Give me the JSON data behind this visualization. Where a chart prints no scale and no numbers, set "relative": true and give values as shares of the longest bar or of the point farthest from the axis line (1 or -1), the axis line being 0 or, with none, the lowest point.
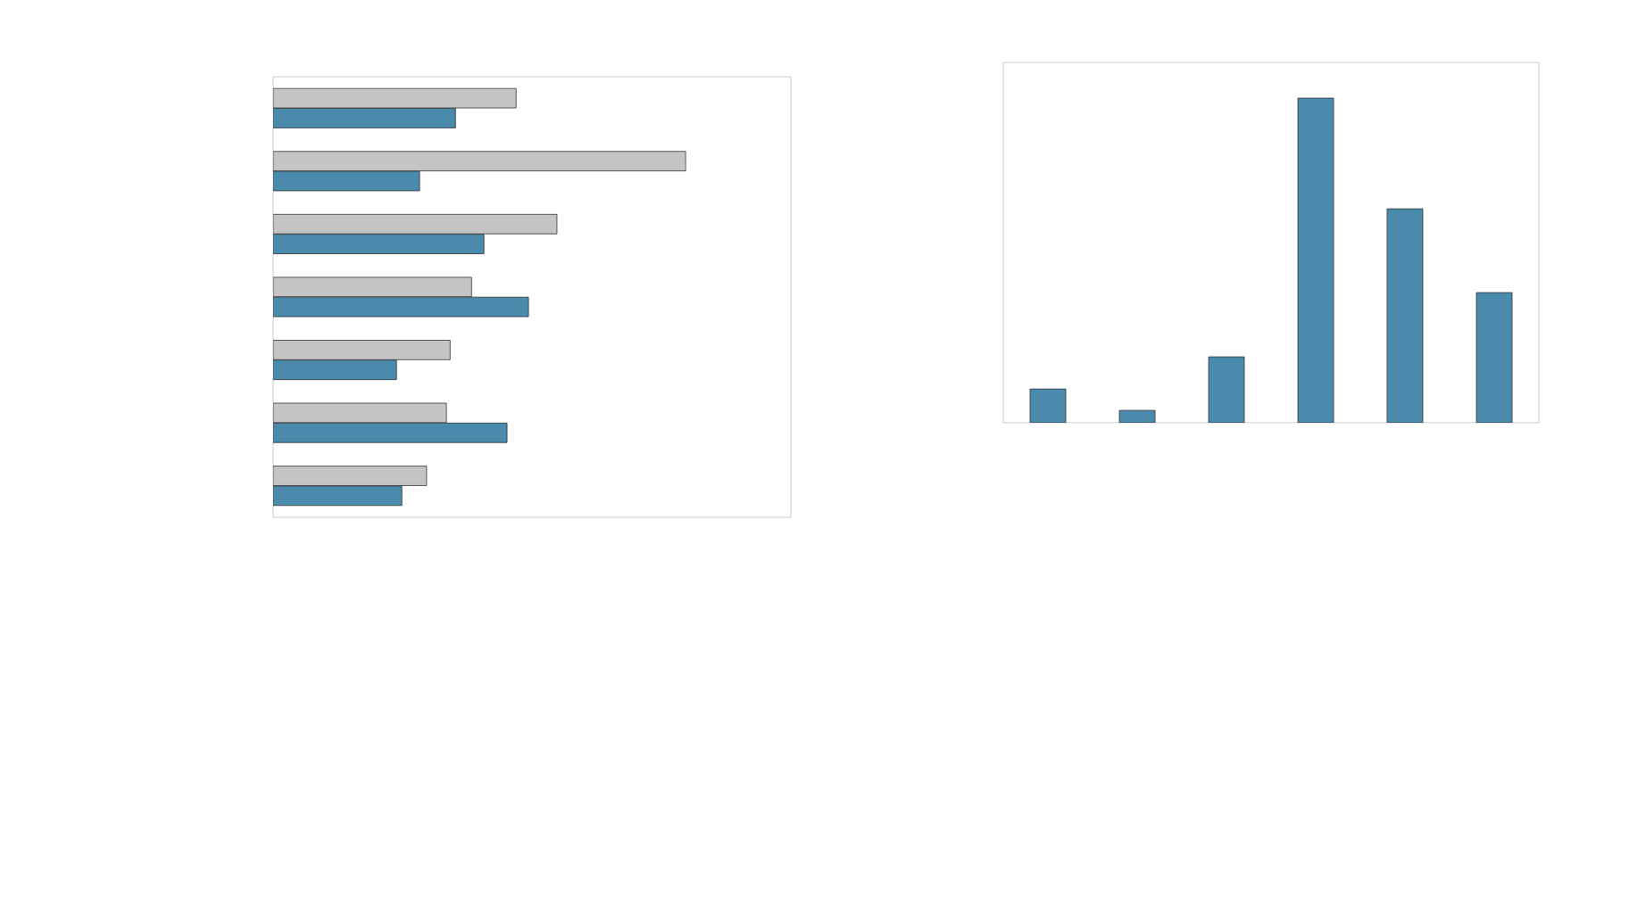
{
  "chart_data": [
    {
      "type": "bar",
      "orientation": "horizontal",
      "relative": true,
      "categories": [
        null,
        null,
        null,
        null,
        null,
        null,
        null
      ],
      "series": [
        {
          "color": "#c4c4c4",
          "values": [
            0.589,
            1,
            0.688,
            0.481,
            0.429,
            0.42,
            0.372
          ]
        },
        {
          "color": "#4a8aad",
          "values": [
            0.442,
            0.355,
            0.511,
            0.619,
            0.299,
            0.567,
            0.312
          ]
        }
      ]
    },
    {
      "type": "bar",
      "relative": true,
      "categories": [
        null,
        null,
        null,
        null,
        null,
        null
      ],
      "series": [
        {
          "color": "#4a8aad",
          "values": [
            0.104,
            0.038,
            0.203,
            1,
            0.659,
            0.401
          ]
        }
      ]
    }
  ]
}
